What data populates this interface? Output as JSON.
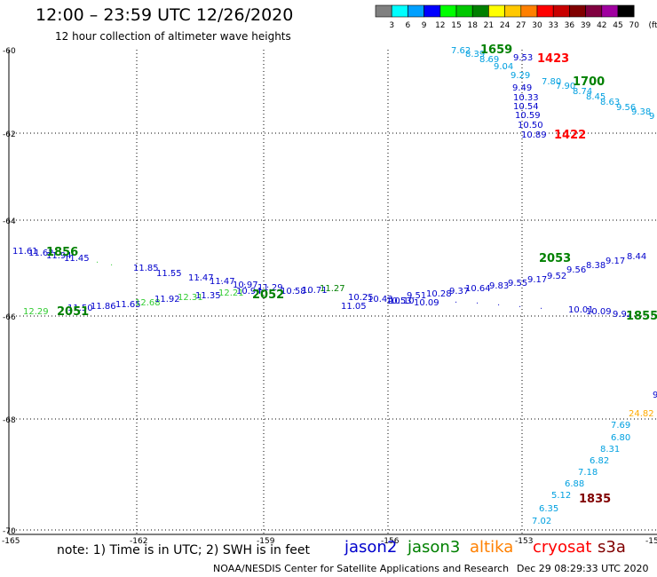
{
  "header": {
    "title": "12:00 – 23:59 UTC 12/26/2020",
    "subtitle": "12 hour collection of altimeter wave heights"
  },
  "colorbar": {
    "swatches": [
      "#808080",
      "#00ffff",
      "#00a0ff",
      "#0000ff",
      "#00ff00",
      "#00c800",
      "#008000",
      "#ffff00",
      "#ffc800",
      "#ff8000",
      "#ff0000",
      "#c80000",
      "#800000",
      "#800040",
      "#a000a0",
      "#000000"
    ],
    "labels": [
      "3",
      "6",
      "9",
      "12",
      "15",
      "18",
      "21",
      "24",
      "27",
      "30",
      "33",
      "36",
      "39",
      "42",
      "45",
      "70",
      "(ft)"
    ]
  },
  "axes": {
    "lat_labels": [
      "-60",
      "-62",
      "-64",
      "-66",
      "-68",
      "-70"
    ],
    "lon_labels": [
      "-165",
      "-162",
      "-159",
      "-156",
      "-153",
      "-150"
    ]
  },
  "colors": {
    "jason2": "#0000cc",
    "jason3": "#008000",
    "altika": "#ff8000",
    "cryosat": "#ff0000",
    "s3a": "#800000"
  },
  "tracks": {
    "upper_blue": [
      "9.53",
      "9.49",
      "10.33",
      "10.54",
      "10.59",
      "10.50",
      "10.89"
    ],
    "upper_cyan": [
      "7.62",
      "8.39",
      "8.69",
      "9.04",
      "9.29",
      "7.80",
      "7.90",
      "8.74",
      "8.45",
      "8.63",
      "9.56",
      "9.38",
      "9"
    ],
    "mid_rising": [
      "11.05",
      "10.53",
      "9.51",
      "10.28",
      "9.37",
      "10.64",
      "9.83",
      "9.55",
      "9.17",
      "9.52",
      "9.56",
      "8.38",
      "9.17",
      "8.44"
    ],
    "mid_left": [
      "11.61",
      "11.62",
      "11.94",
      "11.45",
      "11.85",
      "11.55",
      "11.47",
      "11.47",
      "10.97",
      "11.29",
      "10.58"
    ],
    "mid_flat": [
      "10.25",
      "10.43",
      "10.10",
      "10.09",
      "10.01",
      "10.09",
      "9.92"
    ],
    "low_left": [
      "12.29",
      "11.50",
      "11.86",
      "11.65",
      "12.68",
      "11.92",
      "12.31",
      "11.35",
      "12.21",
      "10.94",
      "10.71",
      "11.27"
    ],
    "lower_right": [
      "24.82",
      "7.69",
      "6.80",
      "8.31",
      "6.82",
      "7.18",
      "6.88",
      "5.12",
      "6.35",
      "7.02",
      "9"
    ]
  },
  "time_labels": {
    "t1659": "1659",
    "t1423": "1423",
    "t1700": "1700",
    "t1422": "1422",
    "t1856": "1856",
    "t2053": "2053",
    "t2051": "2051",
    "t2052": "2052",
    "t1855": "1855",
    "t1835": "1835"
  },
  "footer": {
    "note": "note:  1) Time is in UTC;  2) SWH is in feet",
    "legend": {
      "jason2": "jason2",
      "jason3": "jason3",
      "altika": "altika",
      "cryosat": "cryosat",
      "s3a": "s3a"
    },
    "credit": "NOAA/NESDIS Center for Satellite Applications and Research",
    "timestamp": "Dec 29 08:29:33 UTC 2020"
  }
}
